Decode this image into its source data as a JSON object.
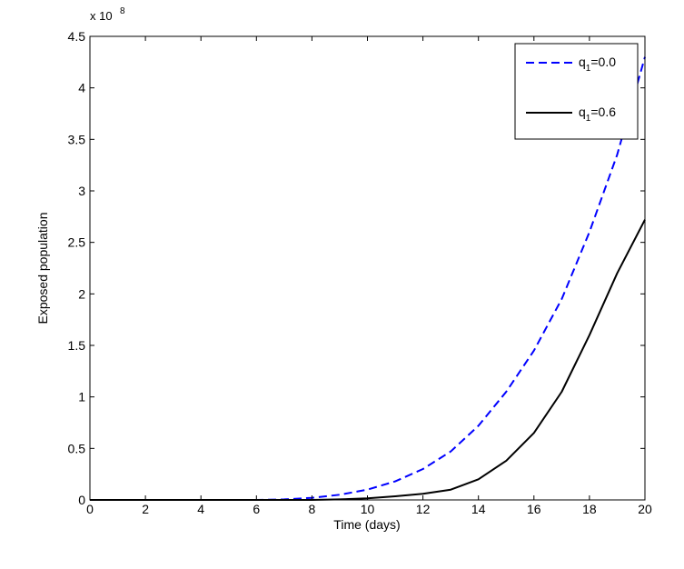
{
  "chart_data": {
    "type": "line",
    "title": "",
    "xlabel": "Time (days)",
    "ylabel": "Exposed population",
    "y_scale_label": "x 10",
    "y_scale_exponent": "8",
    "xlim": [
      0,
      20
    ],
    "ylim": [
      0,
      4.5
    ],
    "x_ticks": [
      0,
      2,
      4,
      6,
      8,
      10,
      12,
      14,
      16,
      18,
      20
    ],
    "y_ticks": [
      0,
      0.5,
      1,
      1.5,
      2,
      2.5,
      3,
      3.5,
      4,
      4.5
    ],
    "x_tick_labels": [
      "0",
      "2",
      "4",
      "6",
      "8",
      "10",
      "12",
      "14",
      "16",
      "18",
      "20"
    ],
    "y_tick_labels": [
      "0",
      "0.5",
      "1",
      "1.5",
      "2",
      "2.5",
      "3",
      "3.5",
      "4",
      "4.5"
    ],
    "grid": false,
    "legend_position": "top-right",
    "series": [
      {
        "name": "q1=0.0",
        "legend_base": "q",
        "legend_sub": "1",
        "legend_rest": "=0.0",
        "color": "#0000ff",
        "style": "dashed",
        "x": [
          0,
          2,
          4,
          6,
          7,
          8,
          9,
          10,
          11,
          12,
          13,
          14,
          15,
          16,
          17,
          18,
          19,
          20
        ],
        "values": [
          0,
          0,
          0,
          0,
          0.005,
          0.02,
          0.05,
          0.1,
          0.18,
          0.3,
          0.47,
          0.72,
          1.05,
          1.45,
          1.95,
          2.6,
          3.35,
          4.3
        ]
      },
      {
        "name": "q1=0.6",
        "legend_base": "q",
        "legend_sub": "1",
        "legend_rest": "=0.6",
        "color": "#000000",
        "style": "solid",
        "x": [
          0,
          2,
          4,
          6,
          8,
          9,
          10,
          11,
          12,
          13,
          14,
          15,
          16,
          17,
          18,
          19,
          20
        ],
        "values": [
          0,
          0,
          0,
          0,
          0,
          0.005,
          0.015,
          0.035,
          0.06,
          0.1,
          0.2,
          0.38,
          0.65,
          1.05,
          1.6,
          2.2,
          2.72
        ]
      }
    ]
  }
}
